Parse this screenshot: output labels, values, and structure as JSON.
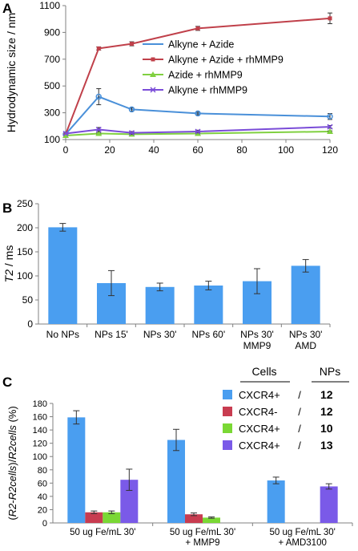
{
  "panel_labels": [
    "A",
    "B",
    "C"
  ],
  "chart_data": [
    {
      "panel": "A",
      "type": "line",
      "ylabel": "Hydrodynamic size / nm",
      "xlabel": "",
      "x": [
        0,
        15,
        30,
        60,
        120
      ],
      "xticks": [
        "0",
        "20",
        "40",
        "60",
        "80",
        "100",
        "120"
      ],
      "xlim": [
        0,
        120
      ],
      "yticks": [
        "100",
        "300",
        "500",
        "700",
        "900",
        "1100"
      ],
      "ylim": [
        100,
        1100
      ],
      "legend_position": "right",
      "grid": false,
      "series": [
        {
          "name": "Alkyne + Azide",
          "color": "#4a90d9",
          "marker": "circle",
          "values": [
            140,
            420,
            325,
            295,
            272
          ],
          "errors": [
            0,
            60,
            12,
            10,
            22
          ]
        },
        {
          "name": "Alkyne + Azide + rhMMP9",
          "color": "#c0404a",
          "marker": "square",
          "values": [
            140,
            780,
            815,
            930,
            1005
          ],
          "errors": [
            0,
            12,
            15,
            15,
            40
          ]
        },
        {
          "name": "Azide + rhMMP9",
          "color": "#80d040",
          "marker": "triangle",
          "values": [
            130,
            145,
            140,
            145,
            160
          ],
          "errors": [
            0,
            5,
            5,
            5,
            5
          ]
        },
        {
          "name": "Alkyne + rhMMP9",
          "color": "#7a4cd8",
          "marker": "x",
          "values": [
            145,
            175,
            150,
            160,
            195
          ],
          "errors": [
            0,
            15,
            10,
            10,
            10
          ]
        }
      ]
    },
    {
      "panel": "B",
      "type": "bar",
      "ylabel_italic": "T2",
      "ylabel_rest": " / ms",
      "categories": [
        [
          "No NPs"
        ],
        [
          "NPs 15'"
        ],
        [
          "NPs 30'"
        ],
        [
          "NPs 60'"
        ],
        [
          "NPs 30'",
          "MMP9"
        ],
        [
          "NPs 30'",
          "AMD"
        ]
      ],
      "values": [
        201,
        85,
        77,
        80,
        89,
        121
      ],
      "errors": [
        8,
        26,
        8,
        9,
        26,
        13
      ],
      "yticks": [
        "0",
        "50",
        "100",
        "150",
        "200",
        "250"
      ],
      "ylim": [
        0,
        250
      ],
      "color": "#4a9ef0",
      "grid": false
    },
    {
      "panel": "C",
      "type": "bar",
      "ylabel": "(R2-R2cells)/R2cells (%)",
      "categories": [
        [
          "50 ug Fe/mL 30'"
        ],
        [
          "50 ug Fe/mL 30'",
          "+ MMP9"
        ],
        [
          "50 ug Fe/mL 30'",
          "+ AMD3100"
        ]
      ],
      "yticks": [
        "0",
        "20",
        "40",
        "60",
        "80",
        "100",
        "120",
        "140",
        "160",
        "180"
      ],
      "ylim": [
        0,
        180
      ],
      "legend_position": "top-right",
      "legend_headers": [
        "Cells",
        "NPs"
      ],
      "series": [
        {
          "cells": "CXCR4+",
          "sep": "/",
          "nps": "12",
          "color": "#4a9ef0",
          "values": [
            159,
            125,
            64
          ],
          "errors": [
            10,
            16,
            5
          ]
        },
        {
          "cells": "CXCR4-",
          "sep": "/",
          "nps": "12",
          "color": "#c83c50",
          "values": [
            16,
            13,
            null
          ],
          "errors": [
            2,
            2,
            0
          ]
        },
        {
          "cells": "CXCR4+",
          "sep": "/",
          "nps": "10",
          "color": "#7ad834",
          "values": [
            16,
            8,
            null
          ],
          "errors": [
            2,
            1,
            0
          ]
        },
        {
          "cells": "CXCR4+",
          "sep": "/",
          "nps": "13",
          "color": "#7a5ae8",
          "values": [
            65,
            null,
            55
          ],
          "errors": [
            16,
            0,
            4
          ]
        }
      ]
    }
  ]
}
